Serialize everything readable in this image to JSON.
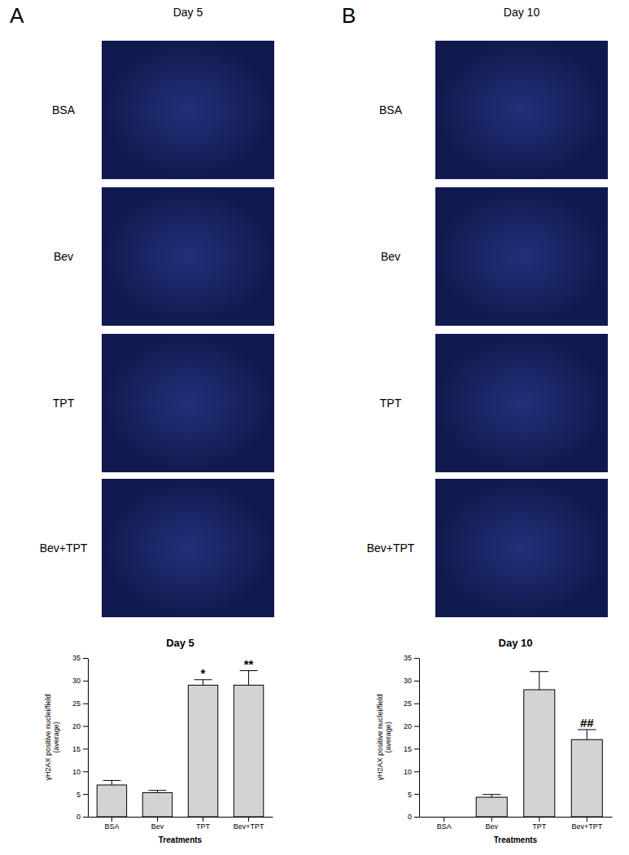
{
  "panels": [
    {
      "label": "A",
      "title": "Day 5",
      "rows": [
        "BSA",
        "Bev",
        "TPT",
        "Bev+TPT"
      ]
    },
    {
      "label": "B",
      "title": "Day 10",
      "rows": [
        "BSA",
        "Bev",
        "TPT",
        "Bev+TPT"
      ]
    }
  ],
  "chart_data": [
    {
      "type": "bar",
      "title": "Day 5",
      "categories": [
        "BSA",
        "Bev",
        "TPT",
        "Bev+TPT"
      ],
      "values": [
        7,
        5.3,
        29,
        29
      ],
      "errors": [
        1,
        0.5,
        1.2,
        3.2
      ],
      "color": "#d3d3d3",
      "x_label": "Treatments",
      "y_label": [
        "γH2AX positive nuclei/field",
        "(average)"
      ],
      "ylim": [
        0,
        35
      ],
      "yticks": [
        0,
        5,
        10,
        15,
        20,
        25,
        30,
        35
      ],
      "grid": false,
      "annotations": [
        {
          "category": "TPT",
          "text": "*"
        },
        {
          "category": "Bev+TPT",
          "text": "**"
        }
      ]
    },
    {
      "type": "bar",
      "title": "Day 10",
      "categories": [
        "BSA",
        "Bev",
        "TPT",
        "Bev+TPT"
      ],
      "values": [
        0,
        4.3,
        28,
        17
      ],
      "errors": [
        0,
        0.6,
        4,
        2.2
      ],
      "color": "#d3d3d3",
      "x_label": "Treatments",
      "y_label": [
        "γH2AX positive nuclei/field",
        "(average)"
      ],
      "ylim": [
        0,
        35
      ],
      "yticks": [
        0,
        5,
        10,
        15,
        20,
        25,
        30,
        35
      ],
      "grid": false,
      "annotations": [
        {
          "category": "Bev+TPT",
          "text": "##"
        }
      ]
    }
  ]
}
